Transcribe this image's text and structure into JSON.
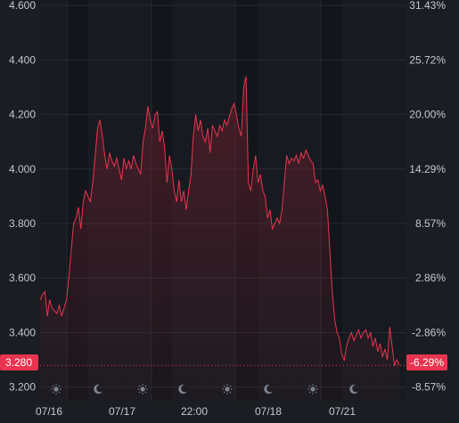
{
  "colors": {
    "background": "#1a1d22",
    "plot": "#171b21",
    "night_band": "#12161b",
    "grid": "#262b33",
    "line": "#e8344e",
    "fill_top": "#6a1e2c",
    "axis_text": "#c5c8ce",
    "icon": "#7e8590",
    "badge": "#e8344e",
    "badge_text": "#ffffff"
  },
  "chart_data": {
    "type": "area",
    "x_ticks": [
      "07/16",
      "07/17",
      "22:00",
      "07/18",
      "07/21"
    ],
    "left_axis": {
      "ticks": [
        "3.200",
        "3.400",
        "3.600",
        "3.800",
        "4.000",
        "4.200",
        "4.400",
        "4.600"
      ],
      "ylim": [
        3.15,
        4.62
      ]
    },
    "right_axis": {
      "ticks": [
        "-8.57%",
        "-2.86%",
        "2.86%",
        "8.57%",
        "14.29%",
        "20.00%",
        "25.72%",
        "31.43%"
      ]
    },
    "current": {
      "value": "3.280",
      "change": "-6.29%"
    },
    "session_icons": [
      "sun-icon",
      "moon-icon",
      "sun-icon",
      "moon-icon",
      "sun-icon",
      "moon-icon",
      "sun-icon",
      "moon-icon"
    ],
    "series": [
      {
        "values": [
          3.52,
          3.54,
          3.55,
          3.46,
          3.52,
          3.49,
          3.48,
          3.47,
          3.5,
          3.46,
          3.49,
          3.52,
          3.6,
          3.7,
          3.8,
          3.82,
          3.86,
          3.78,
          3.88,
          3.92,
          3.9,
          3.88,
          3.95,
          4.05,
          4.15,
          4.18,
          4.12,
          4.05,
          4.0,
          4.06,
          4.03,
          4.01,
          4.04,
          4.0,
          3.96,
          4.04,
          4.0,
          4.03,
          4.0,
          4.05,
          4.02,
          4.0,
          3.98,
          4.1,
          4.15,
          4.23,
          4.18,
          4.15,
          4.2,
          4.21,
          4.1,
          4.14,
          4.08,
          3.95,
          4.05,
          4.0,
          3.92,
          3.88,
          3.96,
          3.88,
          3.92,
          3.85,
          3.92,
          3.98,
          4.12,
          4.2,
          4.14,
          4.18,
          4.12,
          4.1,
          4.15,
          4.06,
          4.16,
          4.14,
          4.12,
          4.16,
          4.14,
          4.18,
          4.16,
          4.19,
          4.22,
          4.24,
          4.2,
          4.15,
          4.12,
          4.3,
          4.34,
          3.95,
          3.92,
          4.0,
          4.05,
          3.95,
          3.98,
          3.92,
          3.9,
          3.82,
          3.85,
          3.78,
          3.8,
          3.82,
          3.8,
          3.85,
          3.95,
          4.05,
          4.02,
          4.04,
          4.03,
          4.05,
          4.02,
          4.06,
          4.04,
          4.07,
          4.05,
          4.03,
          4.02,
          3.95,
          3.96,
          3.92,
          3.94,
          3.9,
          3.85,
          3.7,
          3.55,
          3.45,
          3.4,
          3.38,
          3.32,
          3.3,
          3.35,
          3.38,
          3.4,
          3.37,
          3.39,
          3.41,
          3.38,
          3.4,
          3.41,
          3.38,
          3.4,
          3.35,
          3.38,
          3.33,
          3.36,
          3.31,
          3.34,
          3.3,
          3.42,
          3.35,
          3.28,
          3.3,
          3.28
        ]
      }
    ]
  }
}
